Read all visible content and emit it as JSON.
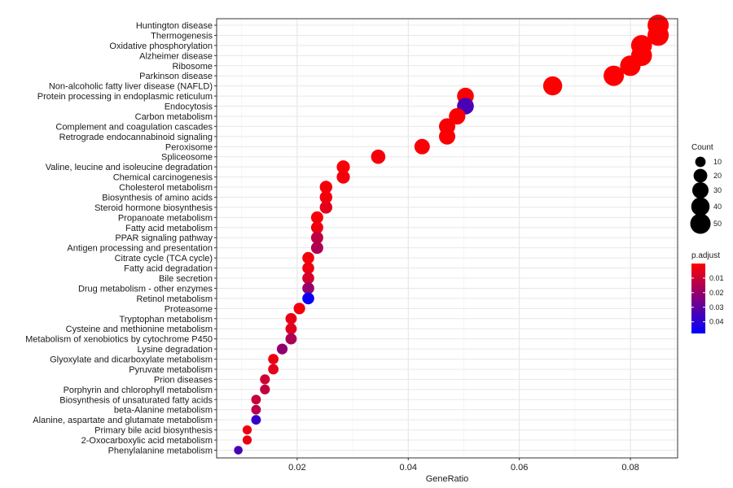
{
  "chart_data": {
    "type": "scatter",
    "xlabel": "GeneRatio",
    "xlim": [
      0.0055,
      0.0885
    ],
    "xticks": [
      0.02,
      0.04,
      0.06,
      0.08
    ],
    "xtick_labels": [
      "0.02",
      "0.04",
      "0.06",
      "0.08"
    ],
    "grid": true,
    "legend_position": "right",
    "size_legend": {
      "title": "Count",
      "values": [
        10,
        20,
        30,
        40,
        50
      ],
      "labels": [
        "10",
        "20",
        "30",
        "40",
        "50"
      ]
    },
    "color_legend": {
      "title": "p.adjust",
      "range": [
        0.0,
        0.048
      ],
      "ticks": [
        0.01,
        0.02,
        0.03,
        0.04
      ],
      "tick_labels": [
        "0.01",
        "0.02",
        "0.03",
        "0.04"
      ],
      "low_color": "#ff0000",
      "high_color": "#0000ff"
    },
    "points": [
      {
        "term": "Huntington disease",
        "gene_ratio": 0.085,
        "count": 55,
        "p_adjust": 0.0001
      },
      {
        "term": "Thermogenesis",
        "gene_ratio": 0.085,
        "count": 55,
        "p_adjust": 0.0001
      },
      {
        "term": "Oxidative phosphorylation",
        "gene_ratio": 0.082,
        "count": 53,
        "p_adjust": 0.0001
      },
      {
        "term": "Alzheimer disease",
        "gene_ratio": 0.082,
        "count": 53,
        "p_adjust": 0.0001
      },
      {
        "term": "Ribosome",
        "gene_ratio": 0.08,
        "count": 51,
        "p_adjust": 0.0001
      },
      {
        "term": "Parkinson disease",
        "gene_ratio": 0.077,
        "count": 50,
        "p_adjust": 0.0001
      },
      {
        "term": "Non-alcoholic fatty liver disease (NAFLD)",
        "gene_ratio": 0.066,
        "count": 43,
        "p_adjust": 0.0001
      },
      {
        "term": "Protein processing in endoplasmic reticulum",
        "gene_ratio": 0.0503,
        "count": 32,
        "p_adjust": 0.001
      },
      {
        "term": "Endocytosis",
        "gene_ratio": 0.0503,
        "count": 32,
        "p_adjust": 0.034
      },
      {
        "term": "Carbon metabolism",
        "gene_ratio": 0.0488,
        "count": 31,
        "p_adjust": 0.001
      },
      {
        "term": "Complement and coagulation cascades",
        "gene_ratio": 0.047,
        "count": 30,
        "p_adjust": 0.001
      },
      {
        "term": "Retrograde endocannabinoid signaling",
        "gene_ratio": 0.047,
        "count": 30,
        "p_adjust": 0.001
      },
      {
        "term": "Peroxisome",
        "gene_ratio": 0.0425,
        "count": 27,
        "p_adjust": 0.001
      },
      {
        "term": "Spliceosome",
        "gene_ratio": 0.0346,
        "count": 22,
        "p_adjust": 0.002
      },
      {
        "term": "Valine, leucine and isoleucine degradation",
        "gene_ratio": 0.0283,
        "count": 18,
        "p_adjust": 0.001
      },
      {
        "term": "Chemical carcinogenesis",
        "gene_ratio": 0.0283,
        "count": 18,
        "p_adjust": 0.002
      },
      {
        "term": "Cholesterol metabolism",
        "gene_ratio": 0.0252,
        "count": 16,
        "p_adjust": 0.002
      },
      {
        "term": "Biosynthesis of amino acids",
        "gene_ratio": 0.0252,
        "count": 16,
        "p_adjust": 0.002
      },
      {
        "term": "Steroid hormone biosynthesis",
        "gene_ratio": 0.0252,
        "count": 16,
        "p_adjust": 0.005
      },
      {
        "term": "Propanoate metabolism",
        "gene_ratio": 0.0236,
        "count": 15,
        "p_adjust": 0.001
      },
      {
        "term": "Fatty acid metabolism",
        "gene_ratio": 0.0236,
        "count": 15,
        "p_adjust": 0.003
      },
      {
        "term": "PPAR signaling pathway",
        "gene_ratio": 0.0236,
        "count": 15,
        "p_adjust": 0.012
      },
      {
        "term": "Antigen processing and presentation",
        "gene_ratio": 0.0236,
        "count": 15,
        "p_adjust": 0.015
      },
      {
        "term": "Citrate cycle (TCA cycle)",
        "gene_ratio": 0.022,
        "count": 14,
        "p_adjust": 0.002
      },
      {
        "term": "Fatty acid degradation",
        "gene_ratio": 0.022,
        "count": 14,
        "p_adjust": 0.003
      },
      {
        "term": "Bile secretion",
        "gene_ratio": 0.022,
        "count": 14,
        "p_adjust": 0.008
      },
      {
        "term": "Drug metabolism - other enzymes",
        "gene_ratio": 0.022,
        "count": 14,
        "p_adjust": 0.02
      },
      {
        "term": "Retinol metabolism",
        "gene_ratio": 0.022,
        "count": 14,
        "p_adjust": 0.046
      },
      {
        "term": "Proteasome",
        "gene_ratio": 0.0204,
        "count": 13,
        "p_adjust": 0.002
      },
      {
        "term": "Tryptophan metabolism",
        "gene_ratio": 0.0189,
        "count": 12,
        "p_adjust": 0.004
      },
      {
        "term": "Cysteine and methionine metabolism",
        "gene_ratio": 0.0189,
        "count": 12,
        "p_adjust": 0.006
      },
      {
        "term": "Metabolism of xenobiotics by cytochrome P450",
        "gene_ratio": 0.0189,
        "count": 12,
        "p_adjust": 0.016
      },
      {
        "term": "Lysine degradation",
        "gene_ratio": 0.0173,
        "count": 11,
        "p_adjust": 0.021
      },
      {
        "term": "Glyoxylate and dicarboxylate metabolism",
        "gene_ratio": 0.0157,
        "count": 10,
        "p_adjust": 0.003
      },
      {
        "term": "Pyruvate metabolism",
        "gene_ratio": 0.0157,
        "count": 10,
        "p_adjust": 0.005
      },
      {
        "term": "Prion diseases",
        "gene_ratio": 0.0142,
        "count": 9,
        "p_adjust": 0.009
      },
      {
        "term": "Porphyrin and chlorophyll metabolism",
        "gene_ratio": 0.0142,
        "count": 9,
        "p_adjust": 0.012
      },
      {
        "term": "Biosynthesis of unsaturated fatty acids",
        "gene_ratio": 0.0126,
        "count": 8,
        "p_adjust": 0.011
      },
      {
        "term": "beta-Alanine metabolism",
        "gene_ratio": 0.0126,
        "count": 8,
        "p_adjust": 0.013
      },
      {
        "term": "Alanine, aspartate and glutamate metabolism",
        "gene_ratio": 0.0126,
        "count": 8,
        "p_adjust": 0.038
      },
      {
        "term": "Primary bile acid biosynthesis",
        "gene_ratio": 0.011,
        "count": 7,
        "p_adjust": 0.003
      },
      {
        "term": "2-Oxocarboxylic acid metabolism",
        "gene_ratio": 0.011,
        "count": 7,
        "p_adjust": 0.004
      },
      {
        "term": "Phenylalanine metabolism",
        "gene_ratio": 0.0094,
        "count": 6,
        "p_adjust": 0.034
      }
    ]
  }
}
